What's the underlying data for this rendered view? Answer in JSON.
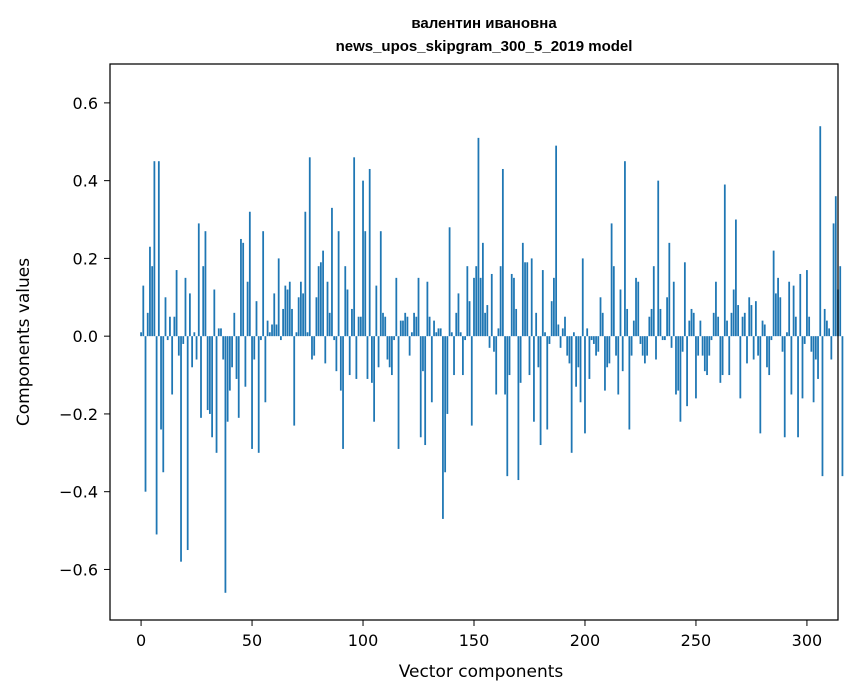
{
  "chart_data": {
    "type": "bar",
    "title_line1": "валентин ивановна",
    "title_line2": "news_upos_skipgram_300_5_2019 model",
    "xlabel": "Vector components",
    "ylabel": "Components values",
    "xlim": [
      -14,
      314
    ],
    "ylim": [
      -0.73,
      0.7
    ],
    "xticks": [
      0,
      50,
      100,
      150,
      200,
      250,
      300
    ],
    "xtick_labels": [
      "0",
      "50",
      "100",
      "150",
      "200",
      "250",
      "300"
    ],
    "yticks": [
      -0.6,
      -0.4,
      -0.2,
      0.0,
      0.2,
      0.4,
      0.6
    ],
    "ytick_labels": [
      "−0.6",
      "−0.4",
      "−0.2",
      "0.0",
      "0.2",
      "0.4",
      "0.6"
    ],
    "bar_color": "#1f77b4",
    "grid": false,
    "values": [
      0.01,
      0.13,
      -0.4,
      0.06,
      0.23,
      0.18,
      0.45,
      -0.51,
      0.45,
      -0.24,
      -0.35,
      0.1,
      -0.01,
      0.05,
      -0.15,
      0.05,
      0.17,
      -0.05,
      -0.58,
      -0.02,
      0.15,
      -0.55,
      0.11,
      -0.08,
      0.01,
      -0.06,
      0.29,
      -0.21,
      0.18,
      0.27,
      -0.19,
      -0.2,
      -0.26,
      0.12,
      -0.3,
      0.02,
      0.02,
      -0.06,
      -0.66,
      -0.22,
      -0.14,
      -0.08,
      0.06,
      -0.11,
      -0.21,
      0.25,
      0.24,
      -0.13,
      0.14,
      0.32,
      -0.29,
      -0.06,
      0.09,
      -0.3,
      -0.01,
      0.27,
      -0.17,
      0.04,
      0.01,
      0.03,
      0.11,
      0.03,
      0.2,
      -0.01,
      0.07,
      0.13,
      0.12,
      0.14,
      0.07,
      -0.23,
      0.01,
      0.1,
      0.14,
      0.11,
      0.32,
      0.01,
      0.46,
      -0.06,
      -0.05,
      0.1,
      0.18,
      0.19,
      0.22,
      -0.07,
      0.14,
      0.06,
      0.33,
      -0.01,
      -0.09,
      0.27,
      -0.14,
      -0.29,
      0.18,
      0.12,
      -0.1,
      0.07,
      0.46,
      -0.11,
      0.05,
      0.05,
      0.4,
      0.27,
      -0.11,
      0.43,
      -0.12,
      -0.22,
      0.13,
      -0.08,
      0.27,
      0.06,
      0.05,
      -0.06,
      -0.08,
      -0.1,
      -0.01,
      0.15,
      -0.29,
      0.04,
      0.04,
      0.06,
      0.05,
      -0.05,
      0.01,
      0.06,
      0.05,
      0.15,
      -0.26,
      -0.09,
      -0.28,
      0.14,
      0.05,
      -0.17,
      0.04,
      0.01,
      0.02,
      0.02,
      -0.47,
      -0.35,
      -0.2,
      0.28,
      0.01,
      -0.1,
      0.06,
      0.11,
      0.01,
      -0.1,
      -0.01,
      0.18,
      0.09,
      -0.23,
      0.15,
      0.18,
      0.51,
      0.15,
      0.24,
      0.06,
      0.08,
      -0.03,
      0.16,
      -0.04,
      -0.15,
      0.02,
      0.18,
      0.43,
      -0.15,
      -0.36,
      -0.1,
      0.16,
      0.15,
      0.07,
      -0.37,
      -0.12,
      0.24,
      0.19,
      0.19,
      -0.1,
      0.2,
      -0.22,
      0.06,
      -0.08,
      -0.28,
      0.17,
      0.01,
      -0.24,
      -0.02,
      0.09,
      0.15,
      0.49,
      0.03,
      -0.03,
      0.02,
      0.05,
      -0.05,
      -0.07,
      -0.3,
      0.01,
      -0.13,
      -0.08,
      -0.17,
      0.2,
      -0.25,
      0.02,
      -0.11,
      -0.01,
      -0.02,
      -0.05,
      -0.04,
      0.1,
      0.06,
      -0.14,
      -0.08,
      -0.07,
      0.29,
      0.18,
      -0.05,
      -0.15,
      0.12,
      -0.09,
      0.45,
      0.07,
      -0.24,
      -0.05,
      0.04,
      0.15,
      0.14,
      -0.02,
      -0.05,
      -0.07,
      -0.05,
      0.05,
      0.07,
      0.18,
      -0.06,
      0.4,
      0.07,
      -0.01,
      -0.01,
      0.1,
      0.24,
      -0.03,
      0.14,
      -0.15,
      -0.14,
      -0.22,
      -0.04,
      0.19,
      -0.18,
      0.04,
      0.07,
      0.06,
      -0.16,
      -0.05,
      0.04,
      -0.05,
      -0.09,
      -0.1,
      -0.05,
      -0.01,
      0.06,
      0.14,
      0.05,
      -0.12,
      -0.1,
      0.39,
      0.04,
      -0.1,
      0.06,
      0.12,
      0.3,
      0.08,
      -0.16,
      0.05,
      0.06,
      -0.07,
      0.1,
      0.08,
      -0.06,
      0.09,
      -0.05,
      -0.25,
      0.04,
      0.03,
      -0.08,
      -0.1,
      -0.01,
      0.22,
      0.11,
      0.15,
      0.1,
      -0.04,
      -0.26,
      0.01,
      0.14,
      -0.15,
      0.13,
      0.05,
      -0.26,
      0.16,
      -0.16,
      -0.02,
      0.17,
      0.05,
      -0.04,
      -0.17,
      -0.06,
      -0.11,
      0.54,
      -0.36,
      0.07,
      0.04,
      0.02,
      -0.06,
      0.29,
      0.36,
      0.12,
      0.18,
      -0.36
    ]
  }
}
